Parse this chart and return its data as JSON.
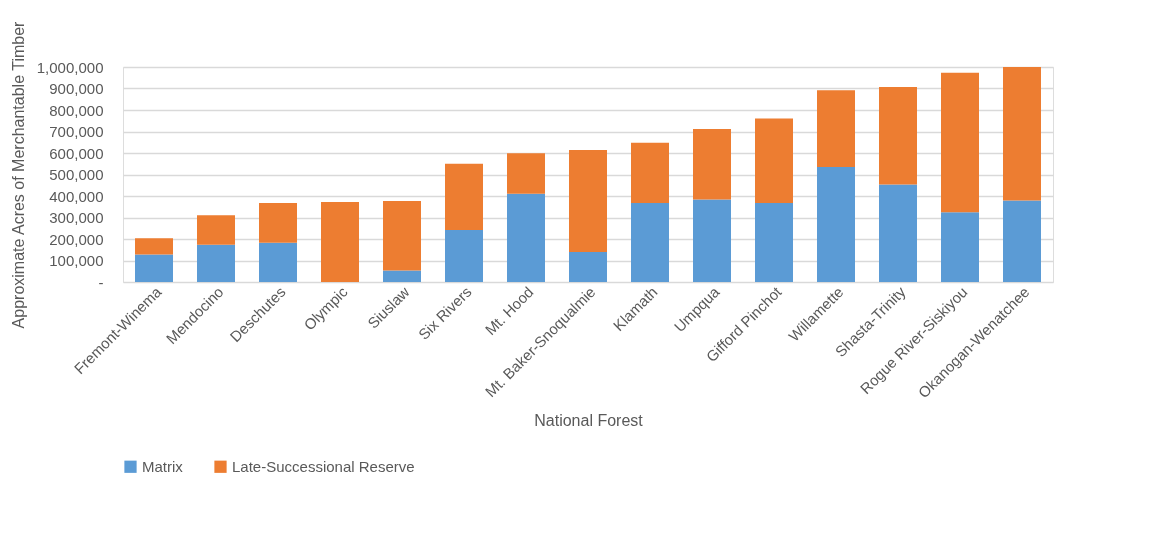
{
  "chart_data": {
    "type": "bar",
    "stacked": true,
    "categories": [
      "Fremont-Winema",
      "Mendocino",
      "Deschutes",
      "Olympic",
      "Siuslaw",
      "Six Rivers",
      "Mt. Hood",
      "Mt. Baker-Snoqualmie",
      "Klamath",
      "Umpqua",
      "Gifford Pinchot",
      "Willamette",
      "Shasta-Trinity",
      "Rogue River-Siskiyou",
      "Okanogan-Wenatchee"
    ],
    "series": [
      {
        "name": "Matrix",
        "color": "#5b9bd5",
        "values": [
          128000,
          173000,
          183000,
          0,
          54000,
          242000,
          411000,
          140000,
          367000,
          384000,
          367000,
          535000,
          453000,
          325000,
          379000
        ]
      },
      {
        "name": "Late-Successional Reserve",
        "color": "#ed7d31",
        "values": [
          75000,
          138000,
          184000,
          372000,
          323000,
          308000,
          188000,
          474000,
          281000,
          328000,
          394000,
          357000,
          454000,
          648000,
          621000
        ]
      }
    ],
    "xlabel": "National Forest",
    "ylabel": "Approximate Acres of Merchantable Timber",
    "ylim": [
      0,
      1000000
    ],
    "yticks": [
      {
        "value": 0,
        "label": "-"
      },
      {
        "value": 100000,
        "label": "100,000"
      },
      {
        "value": 200000,
        "label": "200,000"
      },
      {
        "value": 300000,
        "label": "300,000"
      },
      {
        "value": 400000,
        "label": "400,000"
      },
      {
        "value": 500000,
        "label": "500,000"
      },
      {
        "value": 600000,
        "label": "600,000"
      },
      {
        "value": 700000,
        "label": "700,000"
      },
      {
        "value": 800000,
        "label": "800,000"
      },
      {
        "value": 900000,
        "label": "900,000"
      },
      {
        "value": 1000000,
        "label": "1,000,000"
      }
    ],
    "grid": "y",
    "legend": "bottom"
  }
}
